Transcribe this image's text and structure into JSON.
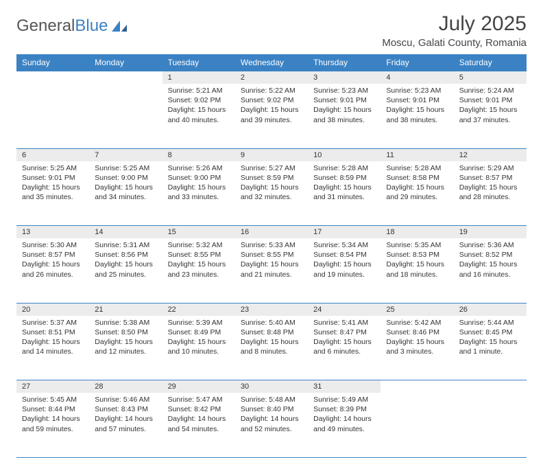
{
  "brand": {
    "part1": "General",
    "part2": "Blue"
  },
  "title": "July 2025",
  "location": "Moscu, Galati County, Romania",
  "colors": {
    "accent": "#3b82c4",
    "daynum_bg": "#ececec",
    "text": "#333333",
    "bg": "#ffffff"
  },
  "day_headers": [
    "Sunday",
    "Monday",
    "Tuesday",
    "Wednesday",
    "Thursday",
    "Friday",
    "Saturday"
  ],
  "weeks": [
    [
      null,
      null,
      {
        "n": "1",
        "sr": "Sunrise: 5:21 AM",
        "ss": "Sunset: 9:02 PM",
        "dl": "Daylight: 15 hours and 40 minutes."
      },
      {
        "n": "2",
        "sr": "Sunrise: 5:22 AM",
        "ss": "Sunset: 9:02 PM",
        "dl": "Daylight: 15 hours and 39 minutes."
      },
      {
        "n": "3",
        "sr": "Sunrise: 5:23 AM",
        "ss": "Sunset: 9:01 PM",
        "dl": "Daylight: 15 hours and 38 minutes."
      },
      {
        "n": "4",
        "sr": "Sunrise: 5:23 AM",
        "ss": "Sunset: 9:01 PM",
        "dl": "Daylight: 15 hours and 38 minutes."
      },
      {
        "n": "5",
        "sr": "Sunrise: 5:24 AM",
        "ss": "Sunset: 9:01 PM",
        "dl": "Daylight: 15 hours and 37 minutes."
      }
    ],
    [
      {
        "n": "6",
        "sr": "Sunrise: 5:25 AM",
        "ss": "Sunset: 9:01 PM",
        "dl": "Daylight: 15 hours and 35 minutes."
      },
      {
        "n": "7",
        "sr": "Sunrise: 5:25 AM",
        "ss": "Sunset: 9:00 PM",
        "dl": "Daylight: 15 hours and 34 minutes."
      },
      {
        "n": "8",
        "sr": "Sunrise: 5:26 AM",
        "ss": "Sunset: 9:00 PM",
        "dl": "Daylight: 15 hours and 33 minutes."
      },
      {
        "n": "9",
        "sr": "Sunrise: 5:27 AM",
        "ss": "Sunset: 8:59 PM",
        "dl": "Daylight: 15 hours and 32 minutes."
      },
      {
        "n": "10",
        "sr": "Sunrise: 5:28 AM",
        "ss": "Sunset: 8:59 PM",
        "dl": "Daylight: 15 hours and 31 minutes."
      },
      {
        "n": "11",
        "sr": "Sunrise: 5:28 AM",
        "ss": "Sunset: 8:58 PM",
        "dl": "Daylight: 15 hours and 29 minutes."
      },
      {
        "n": "12",
        "sr": "Sunrise: 5:29 AM",
        "ss": "Sunset: 8:57 PM",
        "dl": "Daylight: 15 hours and 28 minutes."
      }
    ],
    [
      {
        "n": "13",
        "sr": "Sunrise: 5:30 AM",
        "ss": "Sunset: 8:57 PM",
        "dl": "Daylight: 15 hours and 26 minutes."
      },
      {
        "n": "14",
        "sr": "Sunrise: 5:31 AM",
        "ss": "Sunset: 8:56 PM",
        "dl": "Daylight: 15 hours and 25 minutes."
      },
      {
        "n": "15",
        "sr": "Sunrise: 5:32 AM",
        "ss": "Sunset: 8:55 PM",
        "dl": "Daylight: 15 hours and 23 minutes."
      },
      {
        "n": "16",
        "sr": "Sunrise: 5:33 AM",
        "ss": "Sunset: 8:55 PM",
        "dl": "Daylight: 15 hours and 21 minutes."
      },
      {
        "n": "17",
        "sr": "Sunrise: 5:34 AM",
        "ss": "Sunset: 8:54 PM",
        "dl": "Daylight: 15 hours and 19 minutes."
      },
      {
        "n": "18",
        "sr": "Sunrise: 5:35 AM",
        "ss": "Sunset: 8:53 PM",
        "dl": "Daylight: 15 hours and 18 minutes."
      },
      {
        "n": "19",
        "sr": "Sunrise: 5:36 AM",
        "ss": "Sunset: 8:52 PM",
        "dl": "Daylight: 15 hours and 16 minutes."
      }
    ],
    [
      {
        "n": "20",
        "sr": "Sunrise: 5:37 AM",
        "ss": "Sunset: 8:51 PM",
        "dl": "Daylight: 15 hours and 14 minutes."
      },
      {
        "n": "21",
        "sr": "Sunrise: 5:38 AM",
        "ss": "Sunset: 8:50 PM",
        "dl": "Daylight: 15 hours and 12 minutes."
      },
      {
        "n": "22",
        "sr": "Sunrise: 5:39 AM",
        "ss": "Sunset: 8:49 PM",
        "dl": "Daylight: 15 hours and 10 minutes."
      },
      {
        "n": "23",
        "sr": "Sunrise: 5:40 AM",
        "ss": "Sunset: 8:48 PM",
        "dl": "Daylight: 15 hours and 8 minutes."
      },
      {
        "n": "24",
        "sr": "Sunrise: 5:41 AM",
        "ss": "Sunset: 8:47 PM",
        "dl": "Daylight: 15 hours and 6 minutes."
      },
      {
        "n": "25",
        "sr": "Sunrise: 5:42 AM",
        "ss": "Sunset: 8:46 PM",
        "dl": "Daylight: 15 hours and 3 minutes."
      },
      {
        "n": "26",
        "sr": "Sunrise: 5:44 AM",
        "ss": "Sunset: 8:45 PM",
        "dl": "Daylight: 15 hours and 1 minute."
      }
    ],
    [
      {
        "n": "27",
        "sr": "Sunrise: 5:45 AM",
        "ss": "Sunset: 8:44 PM",
        "dl": "Daylight: 14 hours and 59 minutes."
      },
      {
        "n": "28",
        "sr": "Sunrise: 5:46 AM",
        "ss": "Sunset: 8:43 PM",
        "dl": "Daylight: 14 hours and 57 minutes."
      },
      {
        "n": "29",
        "sr": "Sunrise: 5:47 AM",
        "ss": "Sunset: 8:42 PM",
        "dl": "Daylight: 14 hours and 54 minutes."
      },
      {
        "n": "30",
        "sr": "Sunrise: 5:48 AM",
        "ss": "Sunset: 8:40 PM",
        "dl": "Daylight: 14 hours and 52 minutes."
      },
      {
        "n": "31",
        "sr": "Sunrise: 5:49 AM",
        "ss": "Sunset: 8:39 PM",
        "dl": "Daylight: 14 hours and 49 minutes."
      },
      null,
      null
    ]
  ]
}
